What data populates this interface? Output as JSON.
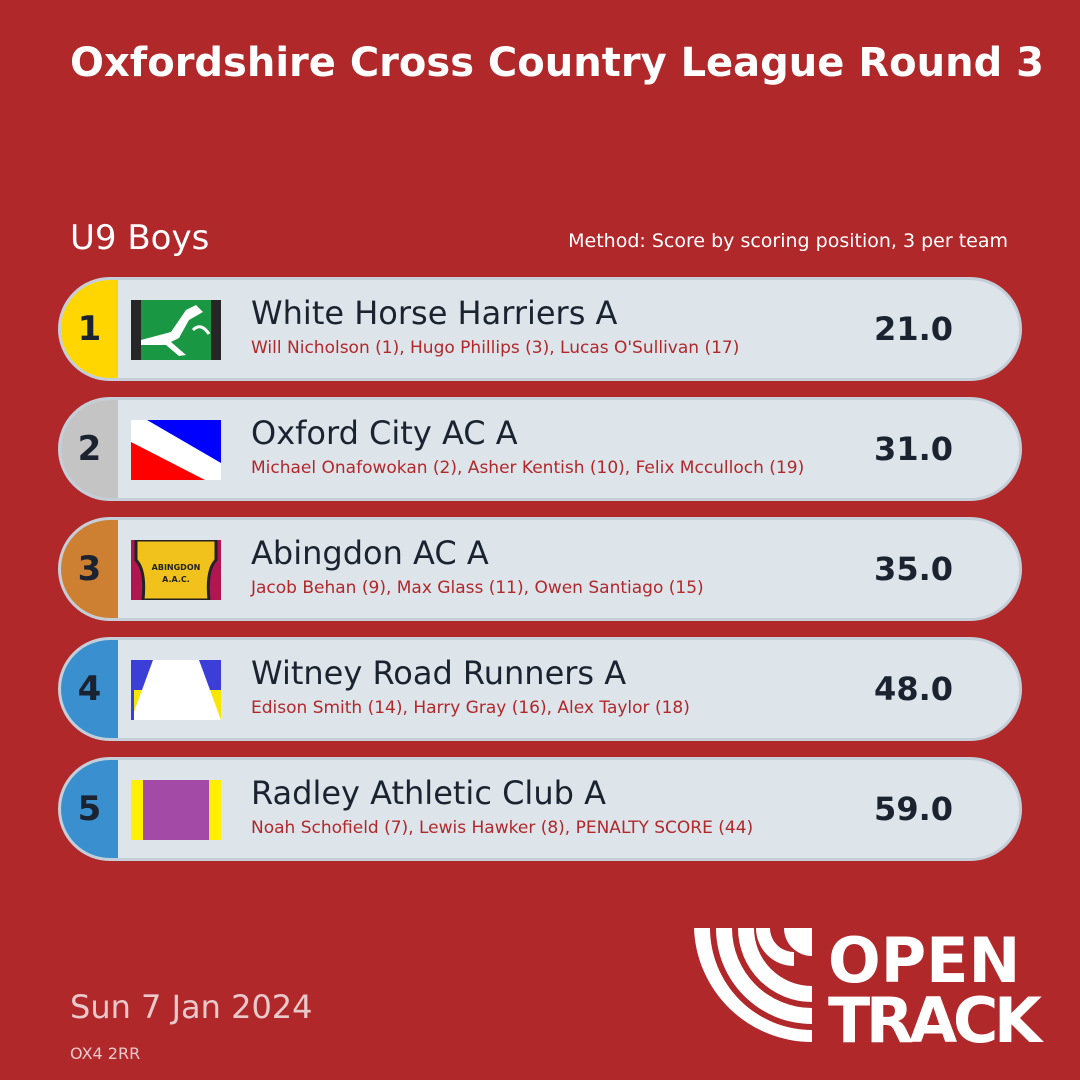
{
  "title": "Oxfordshire Cross Country League Round 3",
  "category": "U9 Boys",
  "method": "Method: Score by scoring position, 3 per team",
  "teams": [
    {
      "rank": "1",
      "name": "White Horse Harriers A",
      "runners": "Will Nicholson (1), Hugo Phillips (3), Lucas O'Sullivan (17)",
      "score": "21.0",
      "rank_color": "#ffd600",
      "flag": "white-horse-flag"
    },
    {
      "rank": "2",
      "name": "Oxford City AC A",
      "runners": "Michael Onafowokan (2), Asher Kentish (10), Felix Mcculloch (19)",
      "score": "31.0",
      "rank_color": "#c4c4c4",
      "flag": "oxford-city-flag"
    },
    {
      "rank": "3",
      "name": "Abingdon AC A",
      "runners": "Jacob Behan (9), Max Glass (11), Owen Santiago (15)",
      "score": "35.0",
      "rank_color": "#cd7f32",
      "flag": "abingdon-vest",
      "flag_text": "ABINGDON A.A.C."
    },
    {
      "rank": "4",
      "name": "Witney Road Runners A",
      "runners": "Edison Smith (14), Harry Gray (16), Alex Taylor (18)",
      "score": "48.0",
      "rank_color": "#3a8fcf",
      "flag": "witney-flag"
    },
    {
      "rank": "5",
      "name": "Radley Athletic Club A",
      "runners": "Noah Schofield (7), Lewis Hawker (8), PENALTY SCORE (44)",
      "score": "59.0",
      "rank_color": "#3a8fcf",
      "flag": "radley-flag"
    }
  ],
  "date": "Sun 7 Jan 2024",
  "postcode": "OX4 2RR",
  "brand": {
    "logo_text": "OPEN TRACK",
    "line1": "OPEN",
    "line2": "TRACK"
  },
  "colors": {
    "background": "#b1282b",
    "row": "#dde4ea",
    "runner_text": "#b1282b"
  }
}
